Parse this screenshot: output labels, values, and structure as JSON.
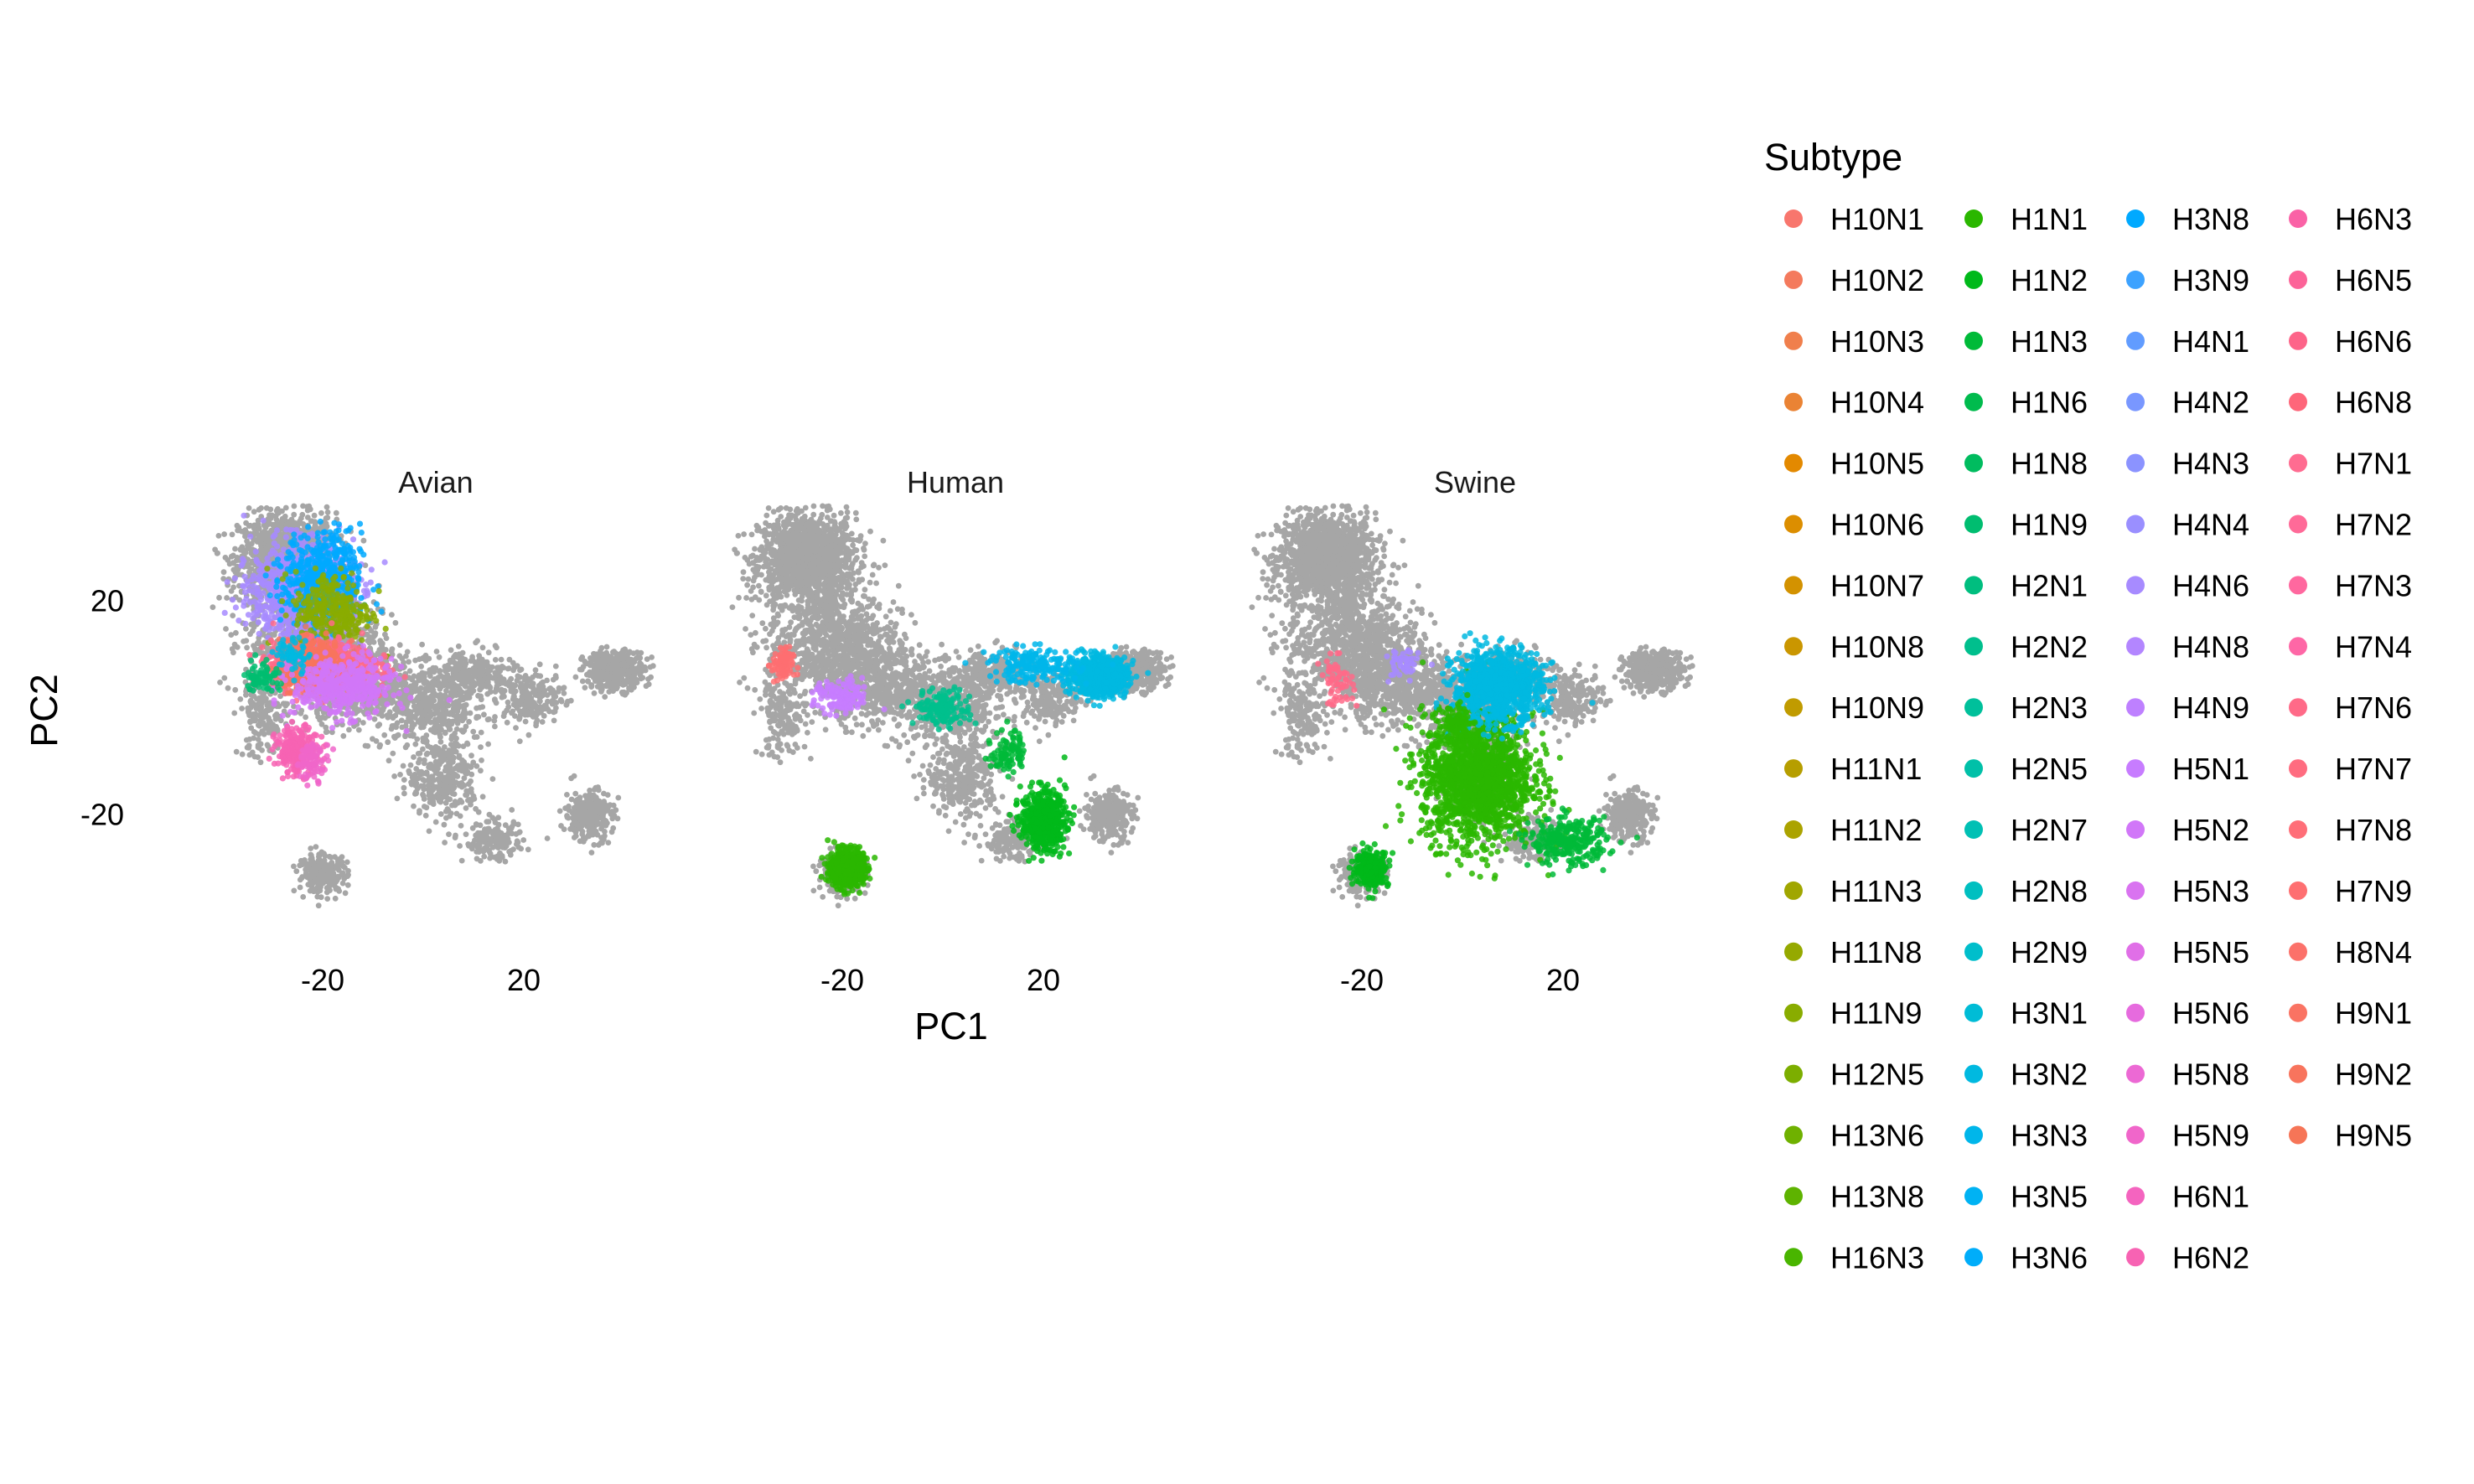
{
  "chart_data": {
    "type": "scatter",
    "xlabel": "PC1",
    "ylabel": "PC2",
    "x_ticks": [
      -20,
      20
    ],
    "y_ticks": [
      20,
      -20
    ],
    "xlim": [
      -45,
      50
    ],
    "ylim": [
      -40,
      40
    ],
    "grid": false,
    "legend_title": "Subtype",
    "legend_position": "right",
    "background_color": "#A6A6A6",
    "panels": [
      {
        "name": "Avian",
        "highlight": [
          {
            "subtype": "H4N6",
            "x": -24,
            "y": 22,
            "spread": [
              9,
              8
            ],
            "count": 1100
          },
          {
            "subtype": "H3N8",
            "x": -20,
            "y": 24,
            "spread": [
              7,
              8
            ],
            "count": 500
          },
          {
            "subtype": "H11N9",
            "x": -18,
            "y": 18,
            "spread": [
              7,
              7
            ],
            "count": 300
          },
          {
            "subtype": "H7N6",
            "x": -20,
            "y": 8,
            "spread": [
              9,
              4
            ],
            "count": 800
          },
          {
            "subtype": "H9N2",
            "x": -22,
            "y": 8,
            "spread": [
              6,
              4
            ],
            "count": 400
          },
          {
            "subtype": "H5N2",
            "x": -16,
            "y": 4,
            "spread": [
              9,
              5
            ],
            "count": 450
          },
          {
            "subtype": "H6N2",
            "x": -25,
            "y": -8,
            "spread": [
              4,
              4
            ],
            "count": 220
          },
          {
            "subtype": "H5N9",
            "x": -22,
            "y": -10,
            "spread": [
              3,
              3
            ],
            "count": 70
          },
          {
            "subtype": "H1N9",
            "x": -32,
            "y": 6,
            "spread": [
              3,
              3
            ],
            "count": 70
          },
          {
            "subtype": "H3N2",
            "x": -26,
            "y": 10,
            "spread": [
              3,
              3
            ],
            "count": 60
          }
        ]
      },
      {
        "name": "Human",
        "highlight": [
          {
            "subtype": "H3N2",
            "x": 31,
            "y": 6,
            "spread": [
              5,
              3
            ],
            "count": 950
          },
          {
            "subtype": "H3N3",
            "x": 18,
            "y": 8,
            "spread": [
              8,
              3
            ],
            "count": 180
          },
          {
            "subtype": "H1N1",
            "x": -19,
            "y": -30,
            "spread": [
              3,
              3
            ],
            "count": 700
          },
          {
            "subtype": "H1N2",
            "x": 20,
            "y": -21,
            "spread": [
              4,
              5
            ],
            "count": 550
          },
          {
            "subtype": "H1N3",
            "x": 13,
            "y": -8,
            "spread": [
              3,
              4
            ],
            "count": 90
          },
          {
            "subtype": "H2N2",
            "x": 0,
            "y": 0,
            "spread": [
              5,
              3
            ],
            "count": 160
          },
          {
            "subtype": "H5N1",
            "x": -20,
            "y": 2,
            "spread": [
              5,
              3
            ],
            "count": 130
          },
          {
            "subtype": "H7N9",
            "x": -32,
            "y": 8,
            "spread": [
              2,
              3
            ],
            "count": 80
          }
        ]
      },
      {
        "name": "Swine",
        "highlight": [
          {
            "subtype": "H1N1",
            "x": 3,
            "y": -13,
            "spread": [
              10,
              11
            ],
            "count": 1700
          },
          {
            "subtype": "H3N2",
            "x": 7,
            "y": 4,
            "spread": [
              8,
              6
            ],
            "count": 1000
          },
          {
            "subtype": "H1N2",
            "x": -18,
            "y": -30,
            "spread": [
              3,
              3
            ],
            "count": 260
          },
          {
            "subtype": "H1N3",
            "x": 21,
            "y": -25,
            "spread": [
              7,
              4
            ],
            "count": 280
          },
          {
            "subtype": "H1N1",
            "x": -1,
            "y": -3,
            "spread": [
              3,
              3
            ],
            "count": 90
          },
          {
            "subtype": "H4N6",
            "x": -12,
            "y": 8,
            "spread": [
              3,
              3
            ],
            "count": 50
          },
          {
            "subtype": "H7N6",
            "x": -25,
            "y": 5,
            "spread": [
              3,
              4
            ],
            "count": 60
          }
        ]
      }
    ],
    "subtypes": [
      {
        "name": "H10N1",
        "color": "#F8766D"
      },
      {
        "name": "H10N2",
        "color": "#F47A5D"
      },
      {
        "name": "H10N3",
        "color": "#F07F4C"
      },
      {
        "name": "H10N4",
        "color": "#EA8334"
      },
      {
        "name": "H10N5",
        "color": "#E38900"
      },
      {
        "name": "H10N6",
        "color": "#DC8E00"
      },
      {
        "name": "H10N7",
        "color": "#D39200"
      },
      {
        "name": "H10N8",
        "color": "#CA9600"
      },
      {
        "name": "H10N9",
        "color": "#C09B00"
      },
      {
        "name": "H11N1",
        "color": "#B69E00"
      },
      {
        "name": "H11N2",
        "color": "#ABA300"
      },
      {
        "name": "H11N3",
        "color": "#A0A600"
      },
      {
        "name": "H11N8",
        "color": "#95A900"
      },
      {
        "name": "H11N9",
        "color": "#89AC00"
      },
      {
        "name": "H12N5",
        "color": "#7CAE00"
      },
      {
        "name": "H13N6",
        "color": "#6FB100"
      },
      {
        "name": "H13N8",
        "color": "#5EB300"
      },
      {
        "name": "H16N3",
        "color": "#49B500"
      },
      {
        "name": "H1N1",
        "color": "#2AB700"
      },
      {
        "name": "H1N2",
        "color": "#00B91A"
      },
      {
        "name": "H1N3",
        "color": "#00BA38"
      },
      {
        "name": "H1N6",
        "color": "#00BB4D"
      },
      {
        "name": "H1N8",
        "color": "#00BC5F"
      },
      {
        "name": "H1N9",
        "color": "#00BD70"
      },
      {
        "name": "H2N1",
        "color": "#00BE7F"
      },
      {
        "name": "H2N2",
        "color": "#00BF8D"
      },
      {
        "name": "H2N3",
        "color": "#00C09B"
      },
      {
        "name": "H2N5",
        "color": "#00C0A8"
      },
      {
        "name": "H2N7",
        "color": "#00C0B4"
      },
      {
        "name": "H2N8",
        "color": "#00BFC0"
      },
      {
        "name": "H2N9",
        "color": "#00BECB"
      },
      {
        "name": "H3N1",
        "color": "#00BCD6"
      },
      {
        "name": "H3N2",
        "color": "#00B9E0"
      },
      {
        "name": "H3N3",
        "color": "#00B6EA"
      },
      {
        "name": "H3N5",
        "color": "#00B2F3"
      },
      {
        "name": "H3N6",
        "color": "#00ADFA"
      },
      {
        "name": "H3N8",
        "color": "#00A9FF"
      },
      {
        "name": "H3N9",
        "color": "#3CA2FF"
      },
      {
        "name": "H4N1",
        "color": "#619CFF"
      },
      {
        "name": "H4N2",
        "color": "#7997FF"
      },
      {
        "name": "H4N3",
        "color": "#8B93FF"
      },
      {
        "name": "H4N4",
        "color": "#9A8FFF"
      },
      {
        "name": "H4N6",
        "color": "#A78BFF"
      },
      {
        "name": "H4N8",
        "color": "#B386FF"
      },
      {
        "name": "H4N9",
        "color": "#BE80FF"
      },
      {
        "name": "H5N1",
        "color": "#C77CFF"
      },
      {
        "name": "H5N2",
        "color": "#D177F8"
      },
      {
        "name": "H5N3",
        "color": "#D973F0"
      },
      {
        "name": "H5N5",
        "color": "#E06FE7"
      },
      {
        "name": "H5N6",
        "color": "#E66BDE"
      },
      {
        "name": "H5N8",
        "color": "#EC69D4"
      },
      {
        "name": "H5N9",
        "color": "#F066CA"
      },
      {
        "name": "H6N1",
        "color": "#F464BF"
      },
      {
        "name": "H6N2",
        "color": "#F763B3"
      },
      {
        "name": "H6N3",
        "color": "#FA62A6"
      },
      {
        "name": "H6N5",
        "color": "#FC6398"
      },
      {
        "name": "H6N6",
        "color": "#FD6489"
      },
      {
        "name": "H6N8",
        "color": "#FE667A"
      },
      {
        "name": "H7N1",
        "color": "#FF6C91"
      },
      {
        "name": "H7N2",
        "color": "#FF6A98"
      },
      {
        "name": "H7N3",
        "color": "#FF689F"
      },
      {
        "name": "H7N4",
        "color": "#FE67A6"
      },
      {
        "name": "H7N6",
        "color": "#FF6A88"
      },
      {
        "name": "H7N7",
        "color": "#FF6C80"
      },
      {
        "name": "H7N8",
        "color": "#FF6E78"
      },
      {
        "name": "H7N9",
        "color": "#FE6F71"
      },
      {
        "name": "H8N4",
        "color": "#FC716A"
      },
      {
        "name": "H9N1",
        "color": "#FA7363"
      },
      {
        "name": "H9N2",
        "color": "#F8745D"
      },
      {
        "name": "H9N5",
        "color": "#F67557"
      }
    ]
  }
}
